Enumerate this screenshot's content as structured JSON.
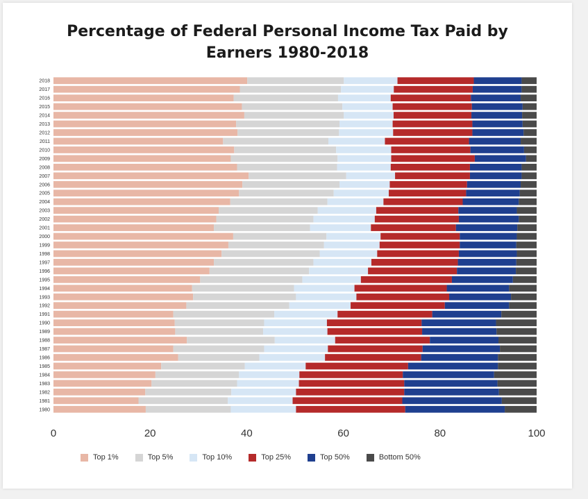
{
  "chart_data": {
    "type": "bar",
    "orientation": "horizontal",
    "stacked": true,
    "title": "Percentage of Federal Personal Income Tax Paid by Earners 1980-2018",
    "title_lines": [
      "Percentage of Federal Personal Income Tax Paid by",
      "Earners 1980-2018"
    ],
    "xlim": [
      0,
      100
    ],
    "xticks": [
      "0",
      "20",
      "40",
      "60",
      "80",
      "100"
    ],
    "grid": false,
    "legend_position": "bottom",
    "categories": [
      "2018",
      "2017",
      "2016",
      "2015",
      "2014",
      "2013",
      "2012",
      "2011",
      "2010",
      "2009",
      "2008",
      "2007",
      "2006",
      "2005",
      "2004",
      "2003",
      "2002",
      "2001",
      "2000",
      "1999",
      "1998",
      "1997",
      "1996",
      "1995",
      "1994",
      "1993",
      "1992",
      "1991",
      "1990",
      "1989",
      "1988",
      "1987",
      "1986",
      "1985",
      "1984",
      "1983",
      "1982",
      "1981",
      "1980"
    ],
    "series": [
      {
        "name": "Top 1%",
        "color": "#e8b7a6",
        "values": [
          40.1,
          38.5,
          37.3,
          39.0,
          39.5,
          37.8,
          38.1,
          35.1,
          37.4,
          36.7,
          38.0,
          40.4,
          39.1,
          38.4,
          36.6,
          34.2,
          33.7,
          33.2,
          37.2,
          36.2,
          34.8,
          33.2,
          32.3,
          30.3,
          28.7,
          28.9,
          27.5,
          24.8,
          25.1,
          25.2,
          27.6,
          24.8,
          25.8,
          22.3,
          21.1,
          20.3,
          19.0,
          17.6,
          19.1
        ]
      },
      {
        "name": "Top 5%",
        "color": "#d5d5d5",
        "values": [
          20.0,
          20.9,
          21.6,
          20.8,
          20.6,
          21.4,
          21.0,
          21.8,
          21.1,
          22.1,
          20.7,
          20.2,
          20.1,
          19.6,
          20.1,
          20.5,
          20.1,
          19.9,
          19.3,
          19.8,
          20.3,
          20.6,
          20.6,
          21.1,
          21.1,
          21.3,
          21.3,
          20.9,
          18.5,
          18.2,
          18.2,
          18.8,
          16.8,
          17.3,
          17.3,
          17.7,
          17.8,
          18.5,
          17.6
        ]
      },
      {
        "name": "Top 10%",
        "color": "#d6e6f5",
        "values": [
          11.1,
          10.9,
          10.9,
          10.4,
          10.3,
          11.0,
          11.2,
          11.7,
          11.4,
          11.1,
          11.1,
          10.1,
          10.4,
          11.4,
          11.6,
          12.1,
          12.7,
          12.6,
          11.2,
          11.5,
          11.9,
          12.0,
          12.2,
          12.1,
          12.5,
          12.5,
          12.7,
          13.1,
          13.0,
          13.3,
          12.5,
          13.2,
          13.6,
          12.6,
          12.5,
          12.8,
          13.4,
          13.4,
          13.5
        ]
      },
      {
        "name": "Top 25%",
        "color": "#b52a2a",
        "values": [
          15.8,
          16.3,
          16.6,
          16.4,
          16.1,
          16.5,
          16.4,
          17.4,
          16.4,
          17.3,
          16.4,
          15.5,
          16.0,
          16.0,
          16.4,
          17.0,
          17.4,
          17.6,
          16.4,
          16.6,
          16.9,
          17.9,
          18.4,
          18.8,
          19.1,
          19.2,
          19.5,
          19.6,
          19.6,
          19.6,
          19.6,
          19.6,
          19.9,
          21.2,
          21.4,
          21.8,
          22.4,
          22.7,
          22.6
        ]
      },
      {
        "name": "Top 50%",
        "color": "#1f3f8f",
        "values": [
          9.9,
          10.1,
          10.3,
          10.5,
          10.5,
          10.4,
          10.6,
          10.7,
          11.1,
          10.6,
          10.7,
          10.7,
          11.1,
          11.1,
          11.6,
          12.1,
          12.4,
          12.7,
          11.8,
          11.7,
          12.0,
          12.1,
          12.2,
          12.6,
          12.9,
          12.8,
          13.3,
          14.3,
          15.4,
          15.4,
          14.2,
          16.0,
          15.9,
          18.6,
          18.9,
          19.3,
          19.6,
          20.6,
          20.6
        ]
      },
      {
        "name": "Bottom 50%",
        "color": "#4a4a4a",
        "values": [
          3.1,
          3.1,
          3.3,
          2.9,
          3.0,
          2.9,
          2.7,
          3.3,
          2.6,
          2.2,
          3.1,
          3.1,
          3.3,
          3.5,
          3.7,
          4.1,
          3.7,
          4.0,
          4.1,
          4.2,
          4.1,
          4.2,
          4.3,
          4.9,
          5.7,
          5.3,
          5.7,
          7.3,
          8.4,
          8.3,
          7.9,
          7.6,
          8.0,
          8.0,
          8.8,
          8.1,
          7.8,
          7.2,
          6.6
        ]
      }
    ]
  }
}
